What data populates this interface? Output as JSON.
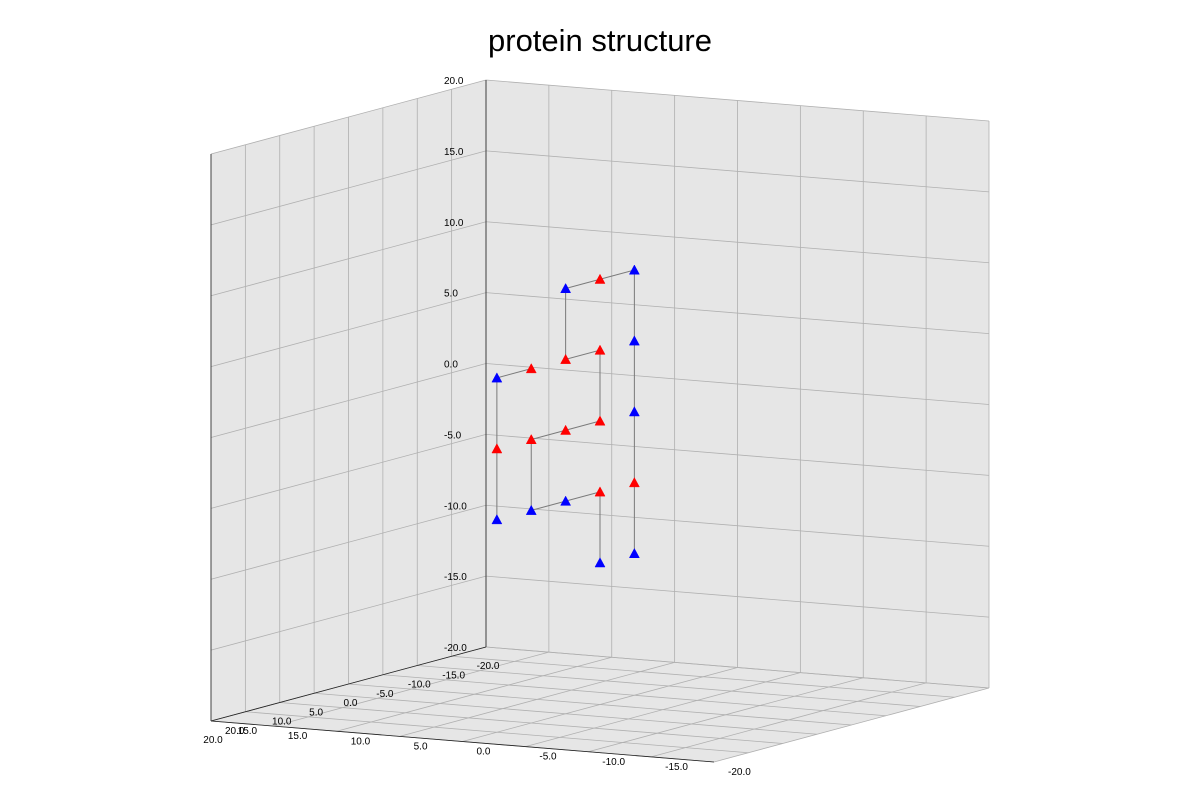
{
  "chart_data": {
    "type": "scatter3d",
    "title": "protein structure",
    "xlabel": "",
    "ylabel": "",
    "zlabel": "",
    "xlim": [
      -20,
      20
    ],
    "ylim": [
      -20,
      20
    ],
    "zlim": [
      -20,
      20
    ],
    "x_ticks": [
      "-20.0",
      "-15.0",
      "-10.0",
      "-5.0",
      "0.0",
      "5.0",
      "10.0",
      "15.0",
      "20.0"
    ],
    "y_ticks": [
      "-20.0",
      "-15.0",
      "-10.0",
      "-5.0",
      "0.0",
      "5.0",
      "10.0",
      "15.0",
      "20.0"
    ],
    "z_ticks": [
      "-20.0",
      "-15.0",
      "-10.0",
      "-5.0",
      "0.0",
      "5.0",
      "10.0",
      "15.0",
      "20.0"
    ],
    "grid": true,
    "marker": "triangle",
    "colors": {
      "H": "#0000ff",
      "P": "#ff0000"
    },
    "residues": [
      {
        "x": -5,
        "y": 0,
        "z": -10,
        "type": "H"
      },
      {
        "x": -5,
        "y": 0,
        "z": -5,
        "type": "P"
      },
      {
        "x": -5,
        "y": 0,
        "z": 0,
        "type": "H"
      },
      {
        "x": -5,
        "y": 0,
        "z": 5,
        "type": "H"
      },
      {
        "x": -5,
        "y": 0,
        "z": 10,
        "type": "H"
      },
      {
        "x": 0,
        "y": 0,
        "z": 10,
        "type": "P"
      },
      {
        "x": 5,
        "y": 0,
        "z": 10,
        "type": "H"
      },
      {
        "x": 5,
        "y": 0,
        "z": 5,
        "type": "P"
      },
      {
        "x": 0,
        "y": 0,
        "z": 5,
        "type": "P"
      },
      {
        "x": 0,
        "y": 0,
        "z": 0,
        "type": "P"
      },
      {
        "x": 5,
        "y": 0,
        "z": 0,
        "type": "P"
      },
      {
        "x": 10,
        "y": 0,
        "z": 0,
        "type": "P"
      },
      {
        "x": 10,
        "y": 0,
        "z": -5,
        "type": "H"
      },
      {
        "x": 5,
        "y": 0,
        "z": -5,
        "type": "H"
      },
      {
        "x": 0,
        "y": 0,
        "z": -5,
        "type": "P"
      },
      {
        "x": 0,
        "y": 0,
        "z": -10,
        "type": "H"
      }
    ],
    "extra_chain": [
      {
        "x": 10,
        "y": 0,
        "z": 5,
        "type": "P"
      },
      {
        "x": 15,
        "y": 0,
        "z": 5,
        "type": "H"
      },
      {
        "x": 15,
        "y": 0,
        "z": 0,
        "type": "P"
      },
      {
        "x": 15,
        "y": 0,
        "z": -5,
        "type": "H"
      }
    ]
  }
}
